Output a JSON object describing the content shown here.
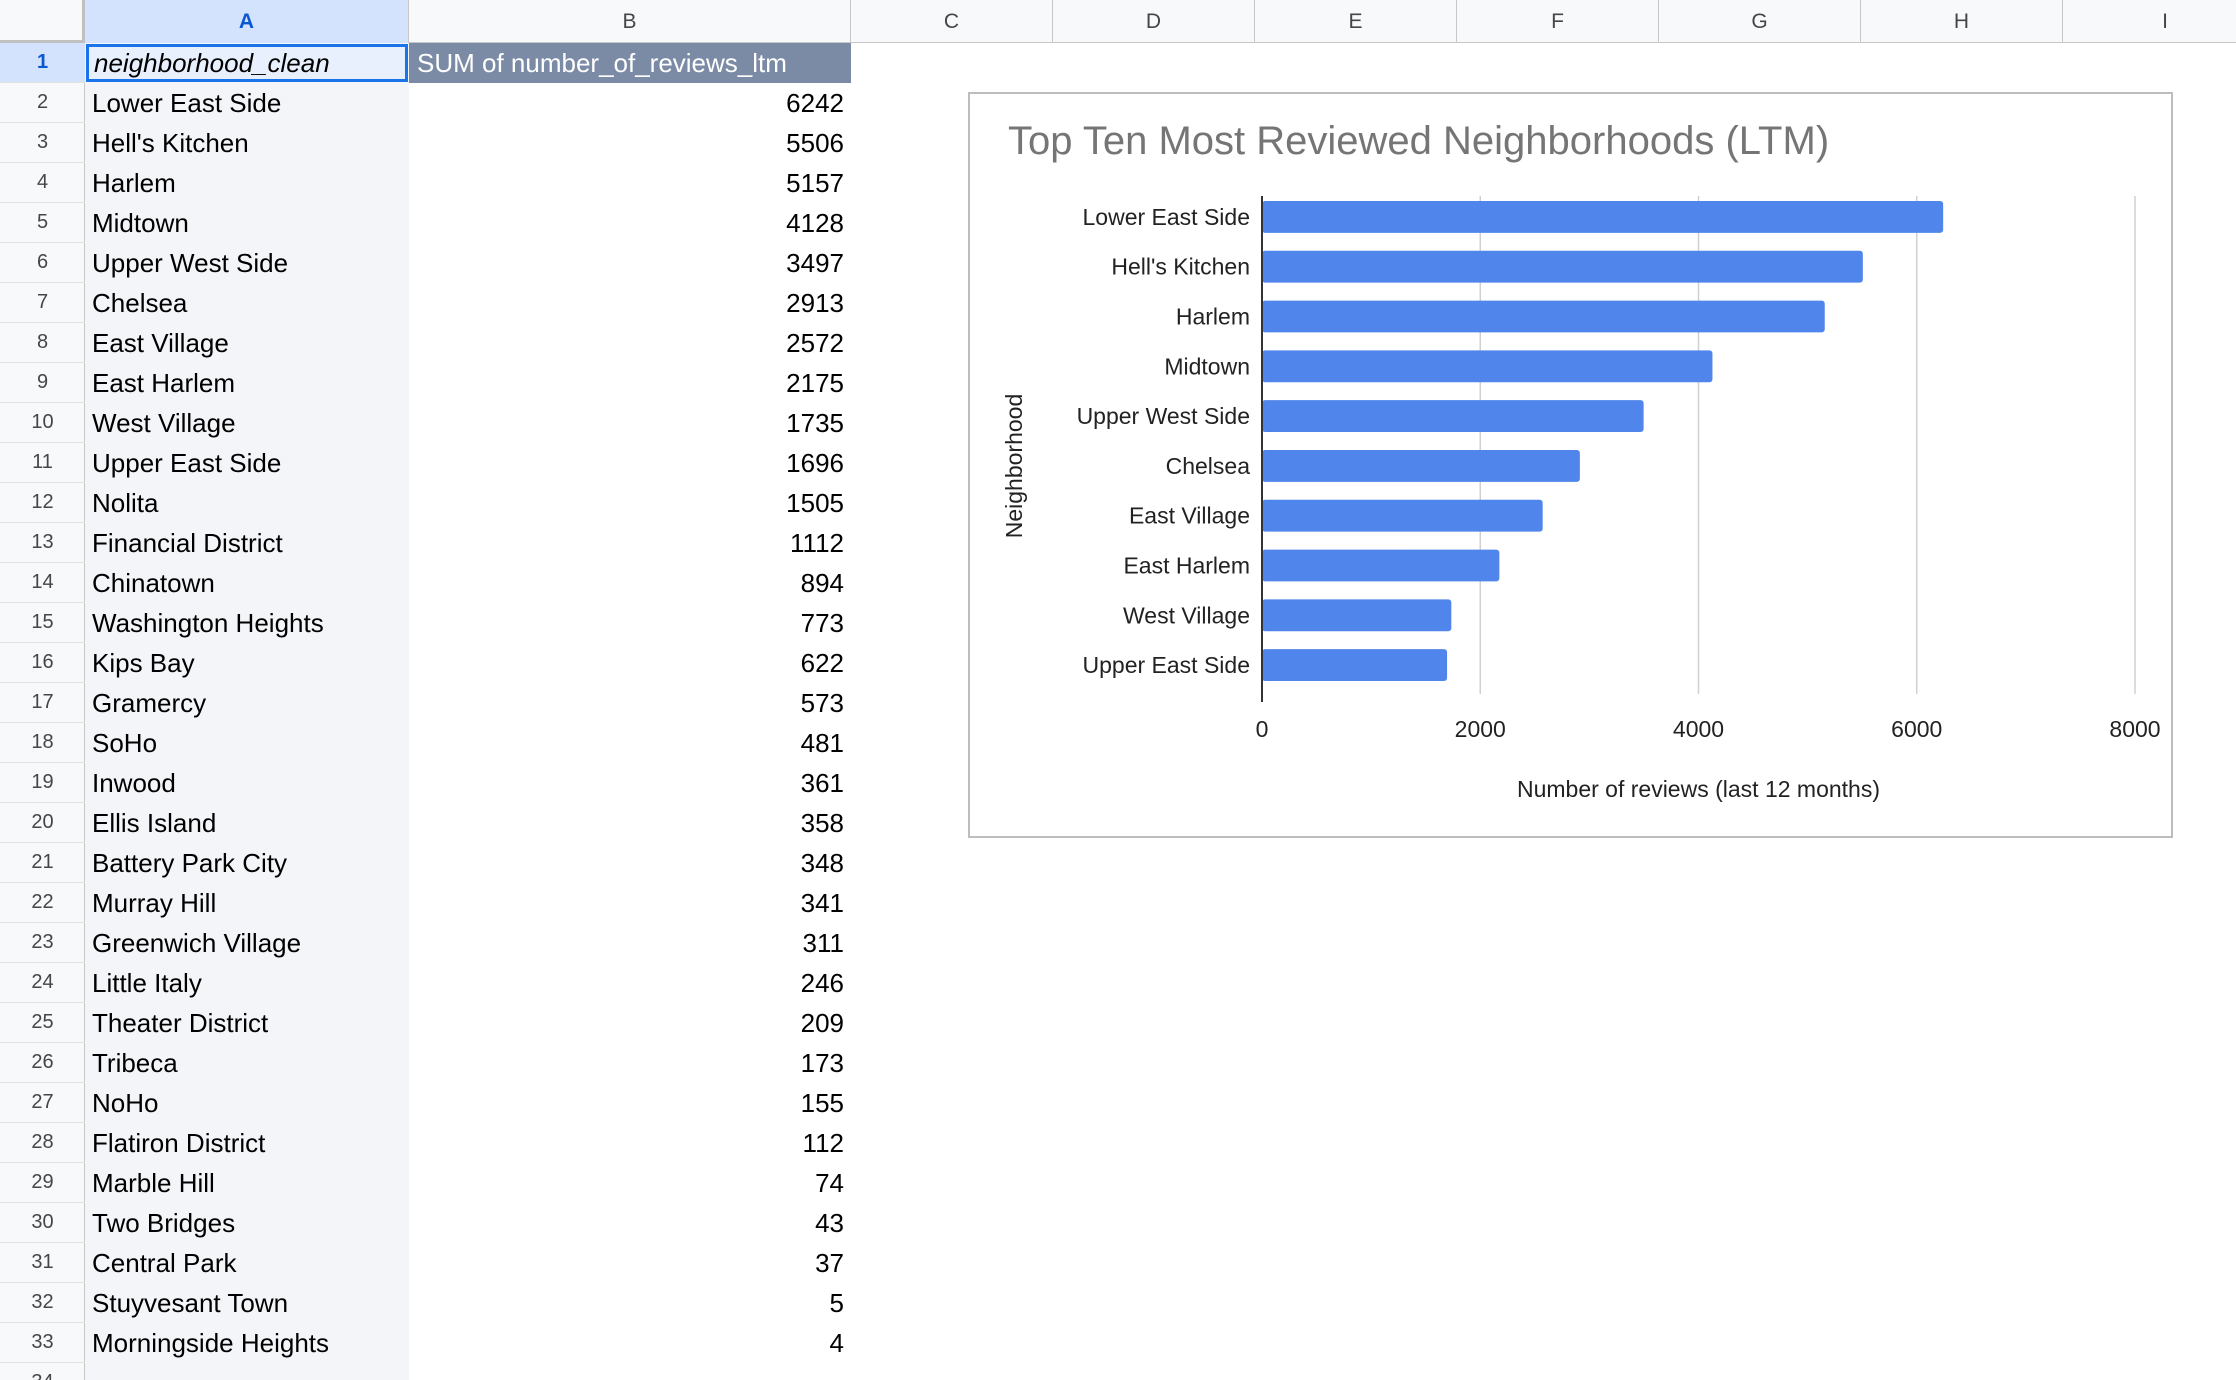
{
  "columns": [
    "A",
    "B",
    "C",
    "D",
    "E",
    "F",
    "G",
    "H",
    "I"
  ],
  "selected_column": "A",
  "header_row": {
    "a1": "neighborhood_clean",
    "b1": "SUM of number_of_reviews_ltm"
  },
  "rows": [
    {
      "row": "2",
      "name": "Lower East Side",
      "value": "6242"
    },
    {
      "row": "3",
      "name": "Hell's Kitchen",
      "value": "5506"
    },
    {
      "row": "4",
      "name": "Harlem",
      "value": "5157"
    },
    {
      "row": "5",
      "name": "Midtown",
      "value": "4128"
    },
    {
      "row": "6",
      "name": "Upper West Side",
      "value": "3497"
    },
    {
      "row": "7",
      "name": "Chelsea",
      "value": "2913"
    },
    {
      "row": "8",
      "name": "East Village",
      "value": "2572"
    },
    {
      "row": "9",
      "name": "East Harlem",
      "value": "2175"
    },
    {
      "row": "10",
      "name": "West Village",
      "value": "1735"
    },
    {
      "row": "11",
      "name": "Upper East Side",
      "value": "1696"
    },
    {
      "row": "12",
      "name": "Nolita",
      "value": "1505"
    },
    {
      "row": "13",
      "name": "Financial District",
      "value": "1112"
    },
    {
      "row": "14",
      "name": "Chinatown",
      "value": "894"
    },
    {
      "row": "15",
      "name": "Washington Heights",
      "value": "773"
    },
    {
      "row": "16",
      "name": "Kips Bay",
      "value": "622"
    },
    {
      "row": "17",
      "name": "Gramercy",
      "value": "573"
    },
    {
      "row": "18",
      "name": "SoHo",
      "value": "481"
    },
    {
      "row": "19",
      "name": "Inwood",
      "value": "361"
    },
    {
      "row": "20",
      "name": "Ellis Island",
      "value": "358"
    },
    {
      "row": "21",
      "name": "Battery Park City",
      "value": "348"
    },
    {
      "row": "22",
      "name": "Murray Hill",
      "value": "341"
    },
    {
      "row": "23",
      "name": "Greenwich Village",
      "value": "311"
    },
    {
      "row": "24",
      "name": "Little Italy",
      "value": "246"
    },
    {
      "row": "25",
      "name": "Theater District",
      "value": "209"
    },
    {
      "row": "26",
      "name": "Tribeca",
      "value": "173"
    },
    {
      "row": "27",
      "name": "NoHo",
      "value": "155"
    },
    {
      "row": "28",
      "name": "Flatiron District",
      "value": "112"
    },
    {
      "row": "29",
      "name": "Marble Hill",
      "value": "74"
    },
    {
      "row": "30",
      "name": "Two Bridges",
      "value": "43"
    },
    {
      "row": "31",
      "name": "Central Park",
      "value": "37"
    },
    {
      "row": "32",
      "name": "Stuyvesant Town",
      "value": "5"
    },
    {
      "row": "33",
      "name": "Morningside Heights",
      "value": "4"
    },
    {
      "row": "34",
      "name": "",
      "value": ""
    }
  ],
  "colors": {
    "bar": "#5086ec",
    "header_fill": "#7b8ba6",
    "selection": "#1a73e8",
    "title": "#757575"
  },
  "chart_data": {
    "type": "bar",
    "orientation": "horizontal",
    "title": "Top Ten Most Reviewed Neighborhoods (LTM)",
    "xlabel": "Number of reviews (last 12 months)",
    "ylabel": "Neighborhood",
    "categories": [
      "Lower East Side",
      "Hell's Kitchen",
      "Harlem",
      "Midtown",
      "Upper West Side",
      "Chelsea",
      "East Village",
      "East Harlem",
      "West Village",
      "Upper East Side"
    ],
    "values": [
      6242,
      5506,
      5157,
      4128,
      3497,
      2913,
      2572,
      2175,
      1735,
      1696
    ],
    "xlim": [
      0,
      8000
    ],
    "xticks": [
      "0",
      "2000",
      "4000",
      "6000",
      "8000"
    ],
    "grid": "vertical",
    "legend": "none"
  }
}
